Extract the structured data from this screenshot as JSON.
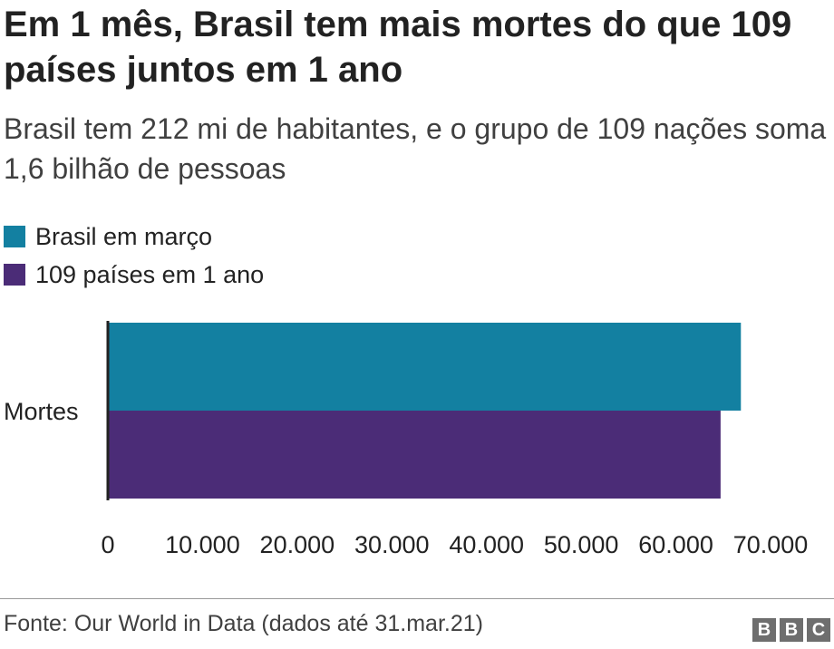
{
  "title": "Em 1 mês, Brasil tem mais mortes do que 109 países juntos em 1 ano",
  "subtitle": "Brasil tem 212 mi de habitantes, e o grupo de 109 nações soma 1,6 bilhão de pessoas",
  "legend": [
    {
      "label": "Brasil em março",
      "color": "#1380a1"
    },
    {
      "label": "109 países em 1 ano",
      "color": "#4b2c77"
    }
  ],
  "chart_data": {
    "type": "bar",
    "orientation": "horizontal",
    "categories": [
      "Mortes"
    ],
    "series": [
      {
        "name": "Brasil em março",
        "values": [
          66868
        ],
        "color": "#1380a1"
      },
      {
        "name": "109 países em 1 ano",
        "values": [
          64722
        ],
        "color": "#4b2c77"
      }
    ],
    "xlim": [
      0,
      70000
    ],
    "x_ticks": [
      0,
      10000,
      20000,
      30000,
      40000,
      50000,
      60000,
      70000
    ],
    "x_tick_labels": [
      "0",
      "10.000",
      "20.000",
      "30.000",
      "40.000",
      "50.000",
      "60.000",
      "70.000"
    ],
    "grid": false,
    "legend_position": "top-left"
  },
  "footer": {
    "source": "Fonte: Our World in Data (dados até 31.mar.21)",
    "logo_letters": [
      "B",
      "B",
      "C"
    ]
  }
}
